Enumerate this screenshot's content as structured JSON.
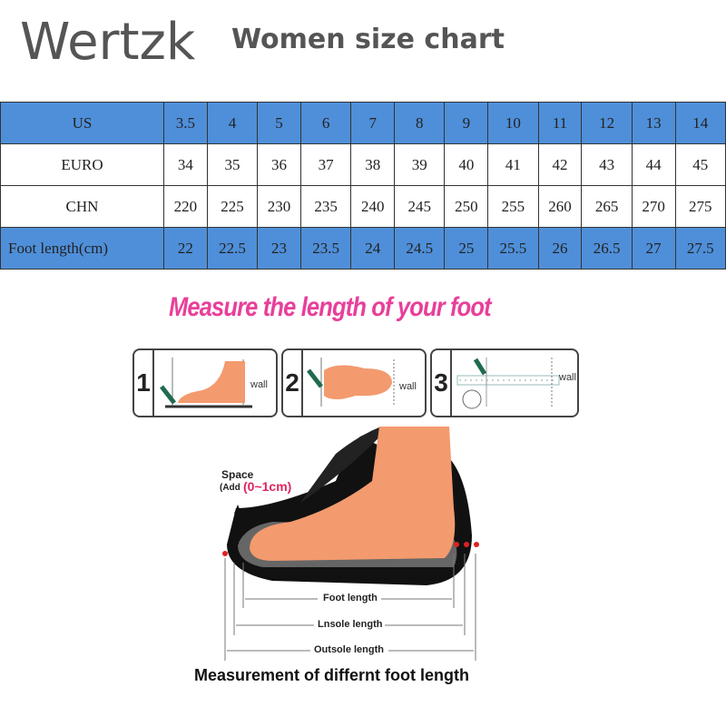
{
  "brand": "Wertzk",
  "subtitle": "Women size chart",
  "table": {
    "rows": [
      {
        "header": "US",
        "values": [
          "3.5",
          "4",
          "5",
          "6",
          "7",
          "8",
          "9",
          "10",
          "11",
          "12",
          "13",
          "14"
        ]
      },
      {
        "header": "EURO",
        "values": [
          "34",
          "35",
          "36",
          "37",
          "38",
          "39",
          "40",
          "41",
          "42",
          "43",
          "44",
          "45"
        ]
      },
      {
        "header": "CHN",
        "values": [
          "220",
          "225",
          "230",
          "235",
          "240",
          "245",
          "250",
          "255",
          "260",
          "265",
          "270",
          "275"
        ]
      },
      {
        "header": "Foot length(cm)",
        "values": [
          "22",
          "22.5",
          "23",
          "23.5",
          "24",
          "24.5",
          "25",
          "25.5",
          "26",
          "26.5",
          "27",
          "27.5"
        ]
      }
    ]
  },
  "measure_title": "Measure the length of your foot",
  "steps": [
    {
      "num": "1",
      "wall": "wall"
    },
    {
      "num": "2",
      "wall": "wall"
    },
    {
      "num": "3",
      "wall": "wall"
    }
  ],
  "diagram": {
    "space": "Space",
    "add_prefix": "(Add",
    "add_value": "(0~1cm)",
    "foot_length": "Foot length",
    "insole_length": "Lnsole length",
    "outsole_length": "Outsole length"
  },
  "bottom_caption": "Measurement of differnt foot length",
  "colors": {
    "table_blue": "#4f8fd9",
    "title_pink": "#e83f9a",
    "skin": "#f39a6e"
  }
}
